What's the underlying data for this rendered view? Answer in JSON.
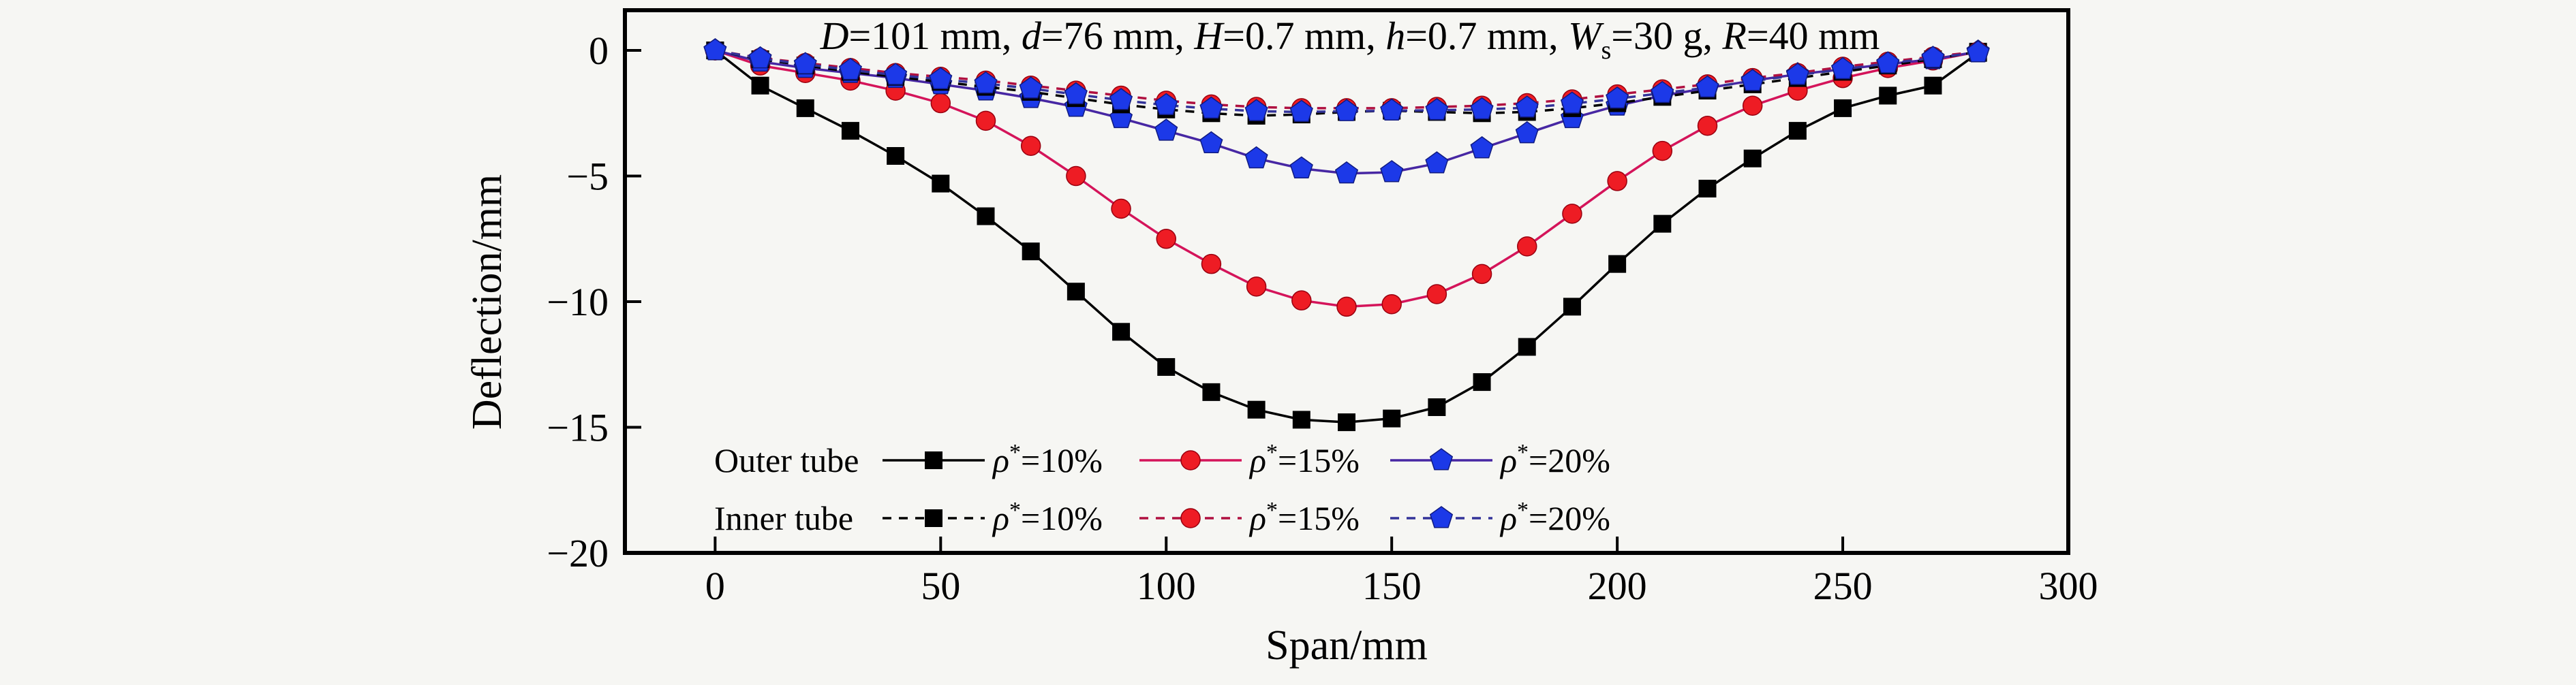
{
  "figure": {
    "background": "#f6f6f3",
    "title_plain": "D=101 mm, d=76 mm, H=0.7 mm, h=0.7 mm, Ws=30 g, R=40 mm"
  },
  "chart_data": {
    "type": "line",
    "title": "D=101 mm, d=76 mm, H=0.7 mm, h=0.7 mm, Ws=30 g, R=40 mm",
    "title_segments": [
      {
        "t": "D",
        "style": "italic"
      },
      {
        "t": "=101 mm, ",
        "style": "normal"
      },
      {
        "t": "d",
        "style": "italic"
      },
      {
        "t": "=76 mm, ",
        "style": "normal"
      },
      {
        "t": "H",
        "style": "italic"
      },
      {
        "t": "=0.7 mm, ",
        "style": "normal"
      },
      {
        "t": "h",
        "style": "italic"
      },
      {
        "t": "=0.7 mm, ",
        "style": "normal"
      },
      {
        "t": "W",
        "style": "italic"
      },
      {
        "t": "s",
        "style": "sub"
      },
      {
        "t": "=30 g, ",
        "style": "normal"
      },
      {
        "t": "R",
        "style": "italic"
      },
      {
        "t": "=40 mm",
        "style": "normal"
      }
    ],
    "xlabel": "Span/mm",
    "ylabel": "Deflection/mm",
    "xlim": [
      -20,
      300
    ],
    "ylim": [
      -20,
      1.6
    ],
    "xticks": [
      0,
      50,
      100,
      150,
      200,
      250,
      300
    ],
    "yticks": [
      0,
      -5,
      -10,
      -15,
      -20
    ],
    "grid": false,
    "axis_color": "#000000",
    "legend_position": "lower-left-two-rows",
    "x": [
      0,
      10,
      20,
      30,
      40,
      50,
      60,
      70,
      80,
      90,
      100,
      110,
      120,
      130,
      140,
      150,
      160,
      170,
      180,
      190,
      200,
      210,
      220,
      230,
      240,
      250,
      260,
      270,
      280
    ],
    "series": [
      {
        "name": "Outer tube rho*=10%",
        "group": "Outer tube",
        "label": "ρ*=10%",
        "line_style": "solid",
        "marker": "square",
        "marker_color": "#000000",
        "line_color": "#000000",
        "values": [
          0,
          -1.4,
          -2.3,
          -3.2,
          -4.2,
          -5.3,
          -6.6,
          -8.0,
          -9.6,
          -11.2,
          -12.6,
          -13.6,
          -14.3,
          -14.7,
          -14.8,
          -14.65,
          -14.2,
          -13.2,
          -11.8,
          -10.2,
          -8.5,
          -6.9,
          -5.5,
          -4.3,
          -3.2,
          -2.3,
          -1.8,
          -1.4,
          -0.1
        ]
      },
      {
        "name": "Outer tube rho*=15%",
        "group": "Outer tube",
        "label": "ρ*=15%",
        "line_style": "solid",
        "marker": "circle",
        "marker_color": "#ee1c24",
        "line_color": "#d4145a",
        "values": [
          0,
          -0.6,
          -0.9,
          -1.2,
          -1.6,
          -2.1,
          -2.8,
          -3.8,
          -5.0,
          -6.3,
          -7.5,
          -8.5,
          -9.4,
          -9.95,
          -10.2,
          -10.1,
          -9.7,
          -8.9,
          -7.8,
          -6.5,
          -5.2,
          -4.0,
          -3.0,
          -2.2,
          -1.6,
          -1.1,
          -0.7,
          -0.4,
          -0.05
        ]
      },
      {
        "name": "Outer tube rho*=20%",
        "group": "Outer tube",
        "label": "ρ*=20%",
        "line_style": "solid",
        "marker": "pentagon",
        "marker_color": "#1c39e8",
        "line_color": "#4727a3",
        "values": [
          0,
          -0.45,
          -0.7,
          -0.9,
          -1.1,
          -1.35,
          -1.6,
          -1.9,
          -2.25,
          -2.7,
          -3.2,
          -3.7,
          -4.3,
          -4.7,
          -4.9,
          -4.85,
          -4.5,
          -3.9,
          -3.3,
          -2.7,
          -2.2,
          -1.8,
          -1.5,
          -1.2,
          -0.95,
          -0.75,
          -0.55,
          -0.35,
          -0.05
        ]
      },
      {
        "name": "Inner tube rho*=10%",
        "group": "Inner tube",
        "label": "ρ*=10%",
        "line_style": "dashed",
        "marker": "square",
        "marker_color": "#000000",
        "line_color": "#000000",
        "values": [
          0,
          -0.35,
          -0.6,
          -0.85,
          -1.05,
          -1.25,
          -1.45,
          -1.65,
          -1.9,
          -2.15,
          -2.35,
          -2.5,
          -2.6,
          -2.55,
          -2.45,
          -2.4,
          -2.45,
          -2.5,
          -2.45,
          -2.3,
          -2.1,
          -1.85,
          -1.6,
          -1.35,
          -1.1,
          -0.85,
          -0.6,
          -0.35,
          -0.05
        ]
      },
      {
        "name": "Inner tube rho*=15%",
        "group": "Inner tube",
        "label": "ρ*=15%",
        "line_style": "dashed",
        "marker": "circle",
        "marker_color": "#ee1c24",
        "line_color": "#b01040",
        "values": [
          0,
          -0.3,
          -0.5,
          -0.7,
          -0.9,
          -1.05,
          -1.2,
          -1.4,
          -1.6,
          -1.8,
          -2.0,
          -2.15,
          -2.25,
          -2.3,
          -2.3,
          -2.3,
          -2.25,
          -2.2,
          -2.1,
          -1.95,
          -1.75,
          -1.55,
          -1.35,
          -1.1,
          -0.9,
          -0.65,
          -0.45,
          -0.25,
          -0.05
        ]
      },
      {
        "name": "Inner tube rho*=20%",
        "group": "Inner tube",
        "label": "ρ*=20%",
        "line_style": "dashed",
        "marker": "pentagon",
        "marker_color": "#1c39e8",
        "line_color": "#333399",
        "values": [
          0,
          -0.32,
          -0.55,
          -0.78,
          -0.98,
          -1.15,
          -1.32,
          -1.52,
          -1.75,
          -1.98,
          -2.18,
          -2.32,
          -2.42,
          -2.45,
          -2.42,
          -2.4,
          -2.38,
          -2.35,
          -2.28,
          -2.12,
          -1.92,
          -1.7,
          -1.48,
          -1.22,
          -0.98,
          -0.75,
          -0.52,
          -0.3,
          -0.08
        ]
      }
    ],
    "legend_rows": [
      {
        "group": "Outer tube",
        "series": [
          0,
          1,
          2
        ]
      },
      {
        "group": "Inner tube",
        "series": [
          3,
          4,
          5
        ]
      }
    ]
  }
}
